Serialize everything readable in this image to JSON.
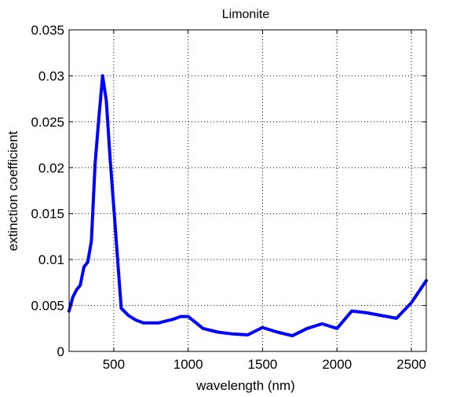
{
  "chart_data": {
    "type": "line",
    "title": "Limonite",
    "xlabel": "wavelength (nm)",
    "ylabel": "extinction coefficient",
    "xlim": [
      200,
      2600
    ],
    "ylim": [
      0,
      0.035
    ],
    "xticks": [
      500,
      1000,
      1500,
      2000,
      2500
    ],
    "yticks": [
      0,
      0.005,
      0.01,
      0.015,
      0.02,
      0.025,
      0.03,
      0.035
    ],
    "xtick_labels": [
      "500",
      "1000",
      "1500",
      "2000",
      "2500"
    ],
    "ytick_labels": [
      "0",
      "0.005",
      "0.01",
      "0.015",
      "0.02",
      "0.025",
      "0.03",
      "0.035"
    ],
    "grid": true,
    "grid_style": "dotted",
    "series": [
      {
        "color": "#0000ff",
        "x": [
          200,
          225,
          250,
          275,
          300,
          325,
          350,
          375,
          400,
          425,
          450,
          475,
          500,
          550,
          600,
          650,
          700,
          750,
          800,
          850,
          900,
          950,
          1000,
          1100,
          1200,
          1300,
          1400,
          1500,
          1600,
          1700,
          1800,
          1900,
          2000,
          2100,
          2200,
          2300,
          2400,
          2500,
          2600
        ],
        "y": [
          0.0044,
          0.0059,
          0.0067,
          0.0072,
          0.0092,
          0.0097,
          0.012,
          0.0205,
          0.0254,
          0.03,
          0.0273,
          0.0212,
          0.0157,
          0.0047,
          0.0039,
          0.0034,
          0.0031,
          0.0031,
          0.0031,
          0.0033,
          0.0035,
          0.0038,
          0.0038,
          0.0025,
          0.0021,
          0.0019,
          0.0018,
          0.0026,
          0.0021,
          0.0017,
          0.0025,
          0.003,
          0.0025,
          0.0044,
          0.0042,
          0.0039,
          0.0036,
          0.0053,
          0.0077
        ]
      }
    ]
  }
}
